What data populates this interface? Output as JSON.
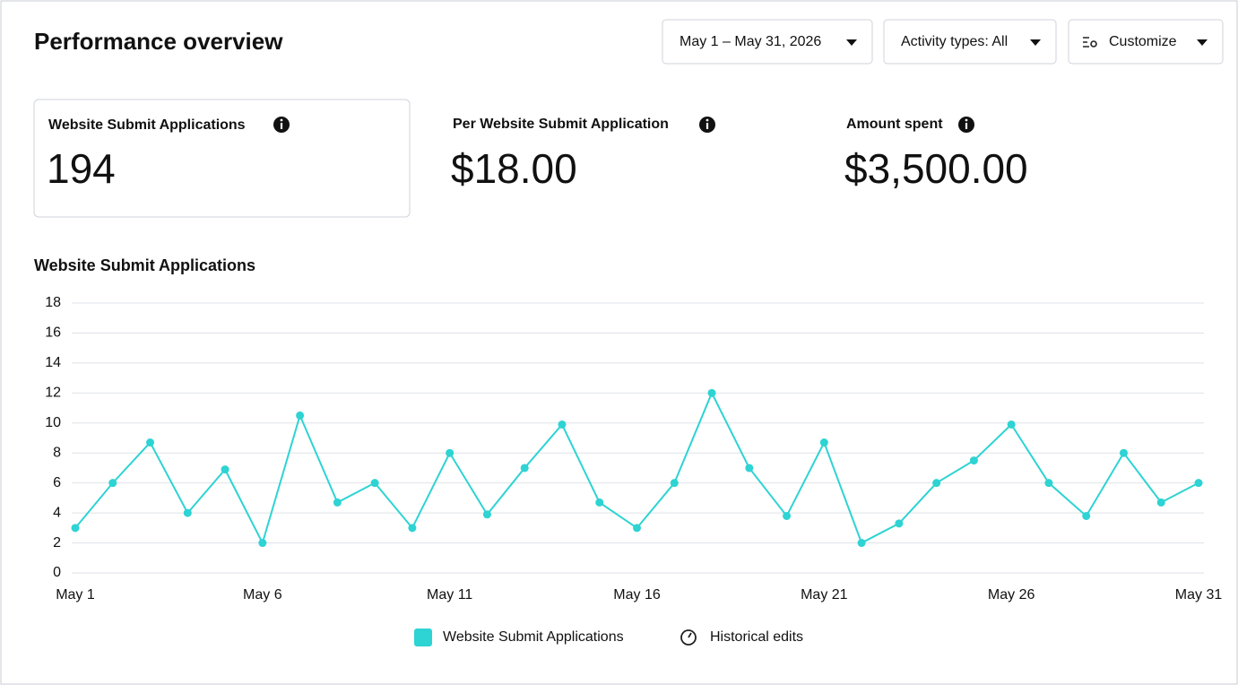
{
  "header": {
    "title": "Performance overview",
    "filters": [
      "May 1 – May 31, 2026",
      "Activity types: All",
      "Customize"
    ]
  },
  "metrics": [
    {
      "label": "Website Submit Applications",
      "value": "194"
    },
    {
      "label": "Per Website Submit Application",
      "value": "$18.00"
    },
    {
      "label": "Amount spent",
      "value": "$3,500.00"
    }
  ],
  "chart_data": {
    "type": "line",
    "title": "Website Submit Applications",
    "categories": [
      "May 1",
      null,
      null,
      null,
      null,
      "May 6",
      null,
      null,
      null,
      null,
      "May 11",
      null,
      null,
      null,
      null,
      "May 16",
      null,
      null,
      null,
      null,
      "May 21",
      null,
      null,
      null,
      null,
      "May 26",
      null,
      null,
      null,
      null,
      "May 31"
    ],
    "series": [
      {
        "name": "Website Submit Applications",
        "color": "#2ed3d3",
        "values": [
          3,
          6,
          8.7,
          4,
          6.9,
          2,
          10.5,
          4.7,
          6,
          3,
          8,
          3.9,
          7,
          9.9,
          4.7,
          3,
          6,
          12,
          7,
          3.8,
          8.7,
          2,
          3.3,
          6,
          7.5,
          9.9,
          6,
          3.8,
          8,
          4.7,
          6
        ]
      }
    ],
    "ylim": [
      0,
      18
    ],
    "yticks": [
      0,
      2,
      4,
      6,
      8,
      10,
      12,
      14,
      16,
      18
    ],
    "grid": true,
    "legend": "bottom",
    "extra_legend": "Historical edits"
  }
}
